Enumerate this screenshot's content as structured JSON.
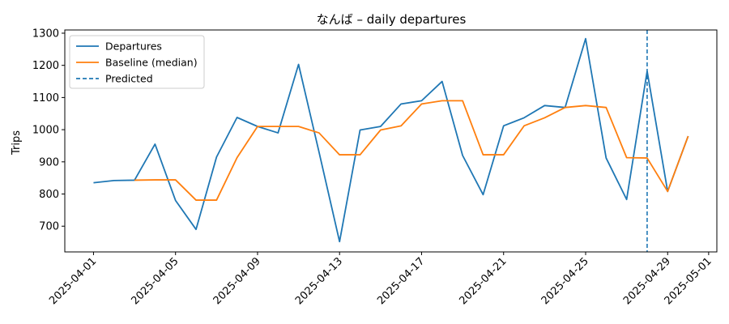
{
  "chart_data": {
    "type": "line",
    "title": "なんば – daily departures",
    "xlabel": "",
    "ylabel": "Trips",
    "x": [
      "2025-04-01",
      "2025-04-02",
      "2025-04-03",
      "2025-04-04",
      "2025-04-05",
      "2025-04-06",
      "2025-04-07",
      "2025-04-08",
      "2025-04-09",
      "2025-04-10",
      "2025-04-11",
      "2025-04-12",
      "2025-04-13",
      "2025-04-14",
      "2025-04-15",
      "2025-04-16",
      "2025-04-17",
      "2025-04-18",
      "2025-04-19",
      "2025-04-20",
      "2025-04-21",
      "2025-04-22",
      "2025-04-23",
      "2025-04-24",
      "2025-04-25",
      "2025-04-26",
      "2025-04-27",
      "2025-04-28",
      "2025-04-29",
      "2025-04-30"
    ],
    "series": [
      {
        "name": "Departures",
        "color": "#1f77b4",
        "values": [
          835,
          842,
          843,
          955,
          780,
          690,
          915,
          1038,
          1010,
          990,
          1203,
          930,
          652,
          999,
          1010,
          1080,
          1090,
          1150,
          920,
          798,
          1012,
          1037,
          1075,
          1069,
          1283,
          912,
          783,
          1182,
          808,
          980
        ]
      },
      {
        "name": "Baseline (median)",
        "color": "#ff7f0e",
        "values": [
          null,
          null,
          843,
          844,
          844,
          781,
          781,
          913,
          1010,
          1010,
          1010,
          990,
          922,
          922,
          999,
          1012,
          1080,
          1090,
          1090,
          922,
          922,
          1012,
          1037,
          1069,
          1075,
          1069,
          913,
          912,
          808,
          980
        ]
      }
    ],
    "annotations": [
      {
        "name": "Predicted",
        "type": "vline",
        "x": "2025-04-28",
        "color": "#1f77b4",
        "style": "dashed"
      }
    ],
    "xticks": [
      "2025-04-01",
      "2025-04-05",
      "2025-04-09",
      "2025-04-13",
      "2025-04-17",
      "2025-04-21",
      "2025-04-25",
      "2025-04-29",
      "2025-05-01"
    ],
    "yticks": [
      700,
      800,
      900,
      1000,
      1100,
      1200,
      1300
    ],
    "xlim": [
      "2025-03-30.6",
      "2025-05-01.4"
    ],
    "ylim": [
      620,
      1310
    ],
    "grid": false,
    "legend": "top-left"
  }
}
